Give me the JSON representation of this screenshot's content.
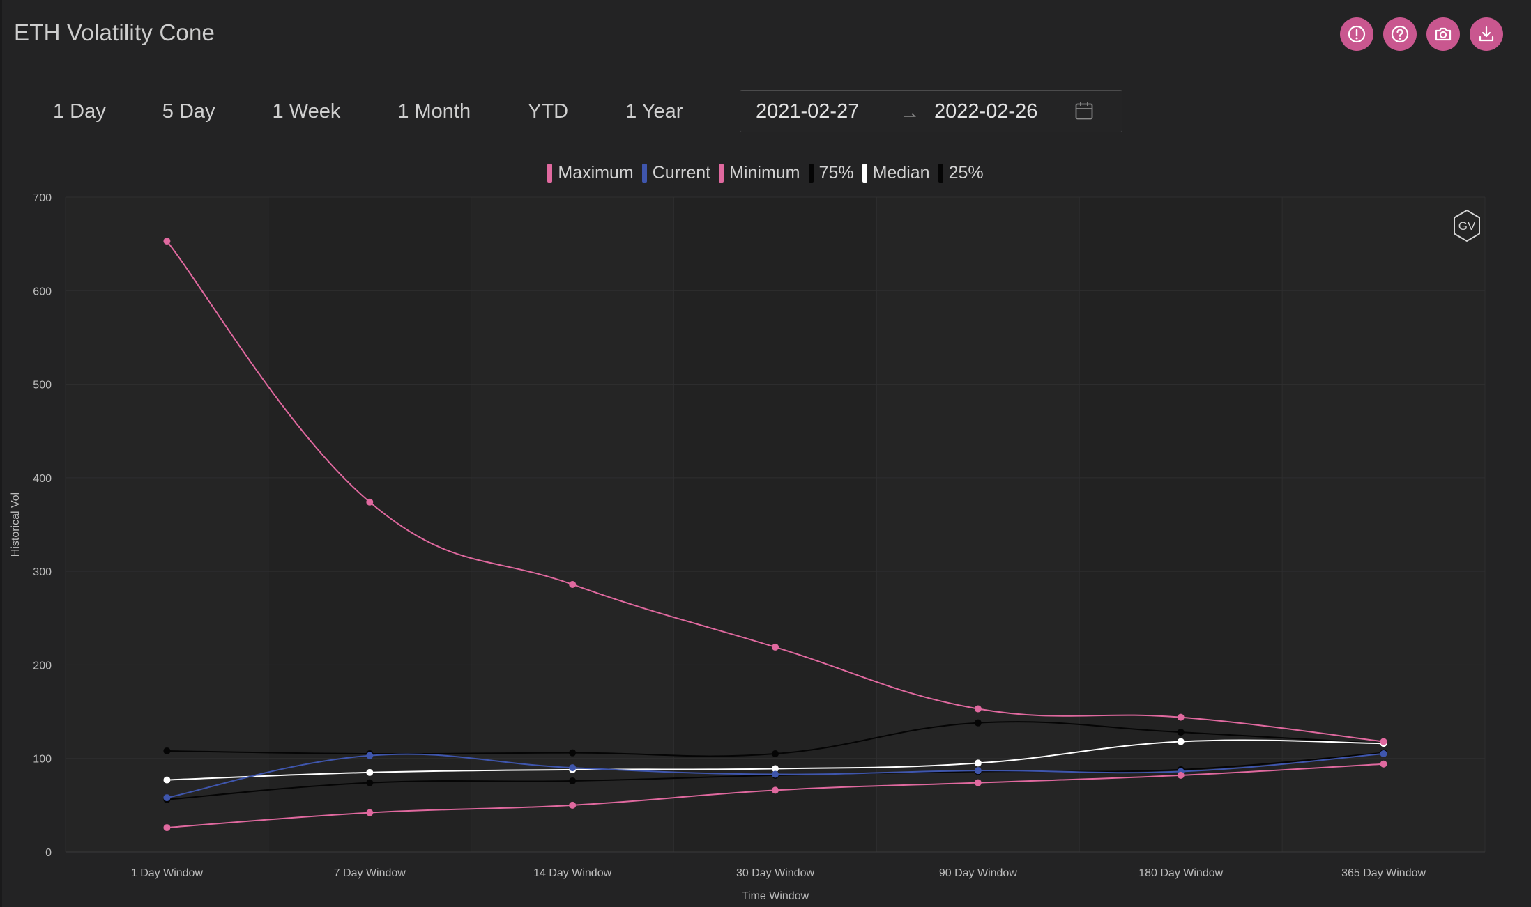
{
  "header": {
    "title": "ETH Volatility Cone",
    "actions": [
      {
        "name": "info-button",
        "icon": "exclamation-circle-icon"
      },
      {
        "name": "help-button",
        "icon": "question-circle-icon"
      },
      {
        "name": "screenshot-button",
        "icon": "camera-icon"
      },
      {
        "name": "download-button",
        "icon": "download-icon"
      }
    ]
  },
  "ranges": [
    {
      "label": "1 Day"
    },
    {
      "label": "5 Day"
    },
    {
      "label": "1 Week"
    },
    {
      "label": "1 Month"
    },
    {
      "label": "YTD"
    },
    {
      "label": "1 Year"
    }
  ],
  "date_range": {
    "start": "2021-02-27",
    "end": "2022-02-26"
  },
  "logo": {
    "text": "GV"
  },
  "colors": {
    "accent": "#c9578f",
    "background": "#232324",
    "maximum": "#e0699f",
    "current": "#3f56ad",
    "minimum": "#e0699f",
    "p75": "#050505",
    "median": "#ffffff",
    "p25": "#050505"
  },
  "chart_data": {
    "type": "line",
    "xlabel": "Time Window",
    "ylabel": "Historical Vol",
    "ylim": [
      0,
      700
    ],
    "yticks": [
      0,
      100,
      200,
      300,
      400,
      500,
      600,
      700
    ],
    "grid": true,
    "legend_position": "top-center",
    "categories": [
      "1 Day Window",
      "7 Day Window",
      "14 Day Window",
      "30 Day Window",
      "90 Day Window",
      "180 Day Window",
      "365 Day Window"
    ],
    "series": [
      {
        "name": "Maximum",
        "color": "#e0699f",
        "values": [
          653,
          374,
          286,
          219,
          153,
          144,
          118
        ]
      },
      {
        "name": "Current",
        "color": "#3f56ad",
        "values": [
          58,
          103,
          90,
          83,
          87,
          86,
          105
        ]
      },
      {
        "name": "Minimum",
        "color": "#e0699f",
        "values": [
          26,
          42,
          50,
          66,
          74,
          82,
          94
        ]
      },
      {
        "name": "75%",
        "color": "#050505",
        "values": [
          108,
          105,
          106,
          105,
          138,
          128,
          116
        ]
      },
      {
        "name": "Median",
        "color": "#ffffff",
        "values": [
          77,
          85,
          88,
          89,
          95,
          118,
          116
        ]
      },
      {
        "name": "25%",
        "color": "#050505",
        "values": [
          56,
          74,
          76,
          82,
          86,
          88,
          106
        ]
      }
    ]
  }
}
